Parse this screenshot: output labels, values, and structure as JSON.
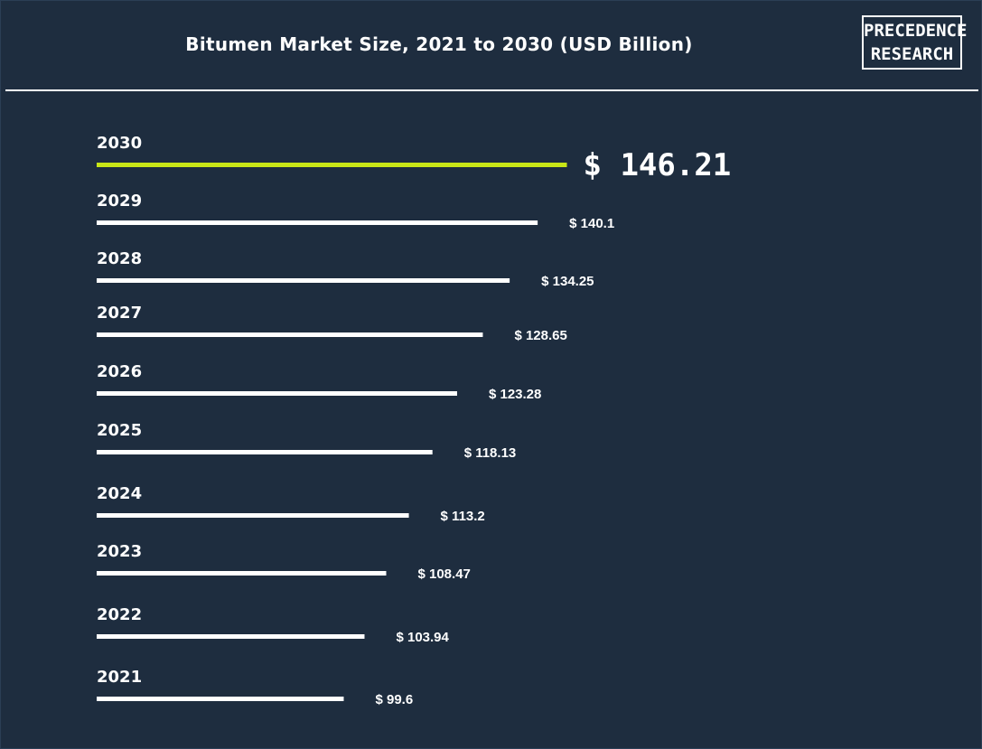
{
  "header": {
    "title": "Bitumen Market Size, 2021 to 2030 (USD Billion)",
    "logo_line1": "PRECEDENCE",
    "logo_line2": "RESEARCH"
  },
  "colors": {
    "background": "#1e2d3f",
    "bar": "#ffffff",
    "highlight_bar": "#c8e617",
    "text": "#ffffff"
  },
  "chart_data": {
    "type": "bar",
    "orientation": "horizontal",
    "title": "Bitumen Market Size, 2021 to 2030 (USD Billion)",
    "categories": [
      "2030",
      "2029",
      "2028",
      "2027",
      "2026",
      "2025",
      "2024",
      "2023",
      "2022",
      "2021"
    ],
    "values": [
      146.21,
      140.1,
      134.25,
      128.65,
      123.28,
      118.13,
      113.2,
      108.47,
      103.94,
      99.6
    ],
    "value_labels": [
      "$ 146.21",
      "$ 140.1",
      "$ 134.25",
      "$ 128.65",
      "$ 123.28",
      "$ 118.13",
      "$ 113.2",
      "$ 108.47",
      "$ 103.94",
      "$ 99.6"
    ],
    "highlight_category": "2030",
    "unit": "USD Billion",
    "grid": false,
    "legend": "none"
  }
}
